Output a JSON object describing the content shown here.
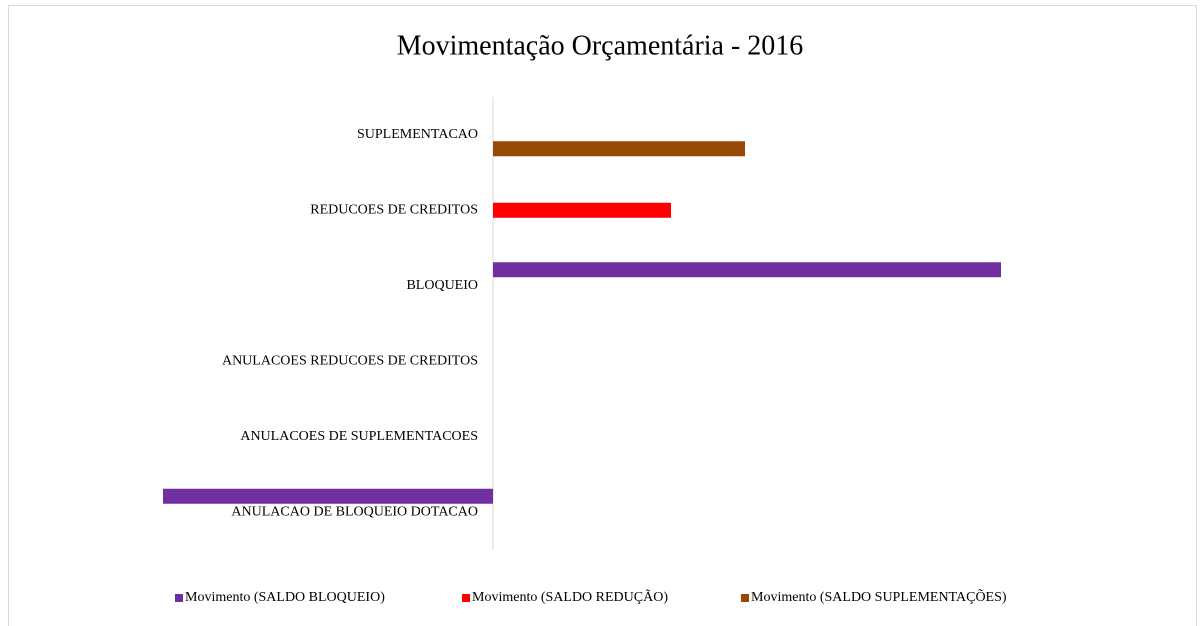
{
  "chart_data": {
    "type": "hbar",
    "title": "Movimentação Orçamentária - 2016",
    "categories": [
      "SUPLEMENTACAO",
      "REDUCOES DE CREDITOS",
      "BLOQUEIO",
      "ANULACOES REDUCOES DE CREDITOS",
      "ANULACOES DE SUPLEMENTACOES",
      "ANULACAO DE BLOQUEIO DOTACAO"
    ],
    "series": [
      {
        "name": "Movimento (SALDO BLOQUEIO)",
        "color": "#7030a0",
        "values": [
          null,
          null,
          508,
          null,
          null,
          -330
        ]
      },
      {
        "name": "Movimento (SALDO REDUÇÃO)",
        "color": "#ff0000",
        "values": [
          null,
          178,
          null,
          null,
          null,
          null
        ]
      },
      {
        "name": "Movimento (SALDO SUPLEMENTAÇÕES)",
        "color": "#974706",
        "values": [
          252,
          null,
          null,
          null,
          null,
          null
        ]
      }
    ],
    "legend": "bottom"
  }
}
